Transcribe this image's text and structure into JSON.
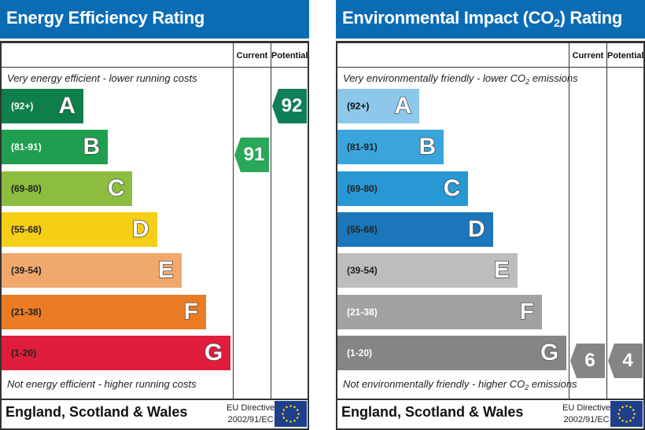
{
  "chart_data": [
    {
      "type": "bar",
      "id": "energy",
      "title": "Energy Efficiency Rating",
      "columns": [
        "Current",
        "Potential"
      ],
      "top_note": "Very energy efficient - lower running costs",
      "bottom_note": "Not energy efficient - higher running costs",
      "region": "England, Scotland & Wales",
      "directive": [
        "EU Directive",
        "2002/91/EC"
      ],
      "categories": [
        "A",
        "B",
        "C",
        "D",
        "E",
        "F",
        "G"
      ],
      "bands": [
        {
          "letter": "A",
          "range": "(92+)",
          "color": "#0e7f4a",
          "range_color": "#ffffff"
        },
        {
          "letter": "B",
          "range": "(81-91)",
          "color": "#1f9e4f",
          "range_color": "#ffffff"
        },
        {
          "letter": "C",
          "range": "(69-80)",
          "color": "#8cbd3f",
          "range_color": "#222222"
        },
        {
          "letter": "D",
          "range": "(55-68)",
          "color": "#f5ce16",
          "range_color": "#222222"
        },
        {
          "letter": "E",
          "range": "(39-54)",
          "color": "#f0a86c",
          "range_color": "#222222"
        },
        {
          "letter": "F",
          "range": "(21-38)",
          "color": "#eb7c23",
          "range_color": "#222222"
        },
        {
          "letter": "G",
          "range": "(1-20)",
          "color": "#e01d3c",
          "range_color": "#222222"
        }
      ],
      "current": {
        "value": 91,
        "band": "B",
        "color": "#2aa85a"
      },
      "potential": {
        "value": 92,
        "band": "A",
        "color": "#0e7f56"
      }
    },
    {
      "type": "bar",
      "id": "environmental",
      "title": "Environmental Impact (CO2) Rating",
      "title_parts": [
        "Environmental Impact (CO",
        "2",
        ") Rating"
      ],
      "columns": [
        "Current",
        "Potential"
      ],
      "top_note": "Very environmentally friendly - lower CO2 emissions",
      "top_note_parts": [
        "Very environmentally friendly - lower CO",
        "2",
        " emissions"
      ],
      "bottom_note": "Not environmentally friendly - higher CO2 emissions",
      "bottom_note_parts": [
        "Not environmentally friendly - higher CO",
        "2",
        " emissions"
      ],
      "region": "England, Scotland & Wales",
      "directive": [
        "EU Directive",
        "2002/91/EC"
      ],
      "categories": [
        "A",
        "B",
        "C",
        "D",
        "E",
        "F",
        "G"
      ],
      "bands": [
        {
          "letter": "A",
          "range": "(92+)",
          "color": "#8dc8ea",
          "range_color": "#111111"
        },
        {
          "letter": "B",
          "range": "(81-91)",
          "color": "#3aa5dc",
          "range_color": "#222222"
        },
        {
          "letter": "C",
          "range": "(69-80)",
          "color": "#2898d4",
          "range_color": "#222222"
        },
        {
          "letter": "D",
          "range": "(55-68)",
          "color": "#1c76bb",
          "range_color": "#222222"
        },
        {
          "letter": "E",
          "range": "(39-54)",
          "color": "#bdbdbd",
          "range_color": "#222222"
        },
        {
          "letter": "F",
          "range": "(21-38)",
          "color": "#a2a2a2",
          "range_color": "#ffffff"
        },
        {
          "letter": "G",
          "range": "(1-20)",
          "color": "#858585",
          "range_color": "#ffffff"
        }
      ],
      "current": {
        "value": 6,
        "band": "G",
        "color": "#858585"
      },
      "potential": {
        "value": 4,
        "band": "G",
        "color": "#858585"
      }
    }
  ]
}
